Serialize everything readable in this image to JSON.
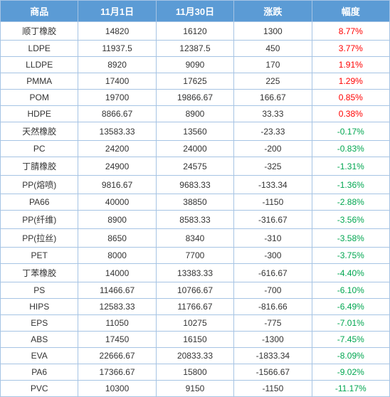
{
  "table": {
    "columns": [
      "商品",
      "11月1日",
      "11月30日",
      "涨跌",
      "幅度"
    ],
    "header_bg": "#5b9bd5",
    "header_color": "#ffffff",
    "border_color": "#a6c4e4",
    "pos_color": "#ff0000",
    "neg_color": "#00a650",
    "rows": [
      {
        "name": "顺丁橡胶",
        "v1": "14820",
        "v2": "16120",
        "diff": "1300",
        "pct": "8.77%",
        "dir": "pos"
      },
      {
        "name": "LDPE",
        "v1": "11937.5",
        "v2": "12387.5",
        "diff": "450",
        "pct": "3.77%",
        "dir": "pos"
      },
      {
        "name": "LLDPE",
        "v1": "8920",
        "v2": "9090",
        "diff": "170",
        "pct": "1.91%",
        "dir": "pos"
      },
      {
        "name": "PMMA",
        "v1": "17400",
        "v2": "17625",
        "diff": "225",
        "pct": "1.29%",
        "dir": "pos"
      },
      {
        "name": "POM",
        "v1": "19700",
        "v2": "19866.67",
        "diff": "166.67",
        "pct": "0.85%",
        "dir": "pos"
      },
      {
        "name": "HDPE",
        "v1": "8866.67",
        "v2": "8900",
        "diff": "33.33",
        "pct": "0.38%",
        "dir": "pos"
      },
      {
        "name": "天然橡胶",
        "v1": "13583.33",
        "v2": "13560",
        "diff": "-23.33",
        "pct": "-0.17%",
        "dir": "neg"
      },
      {
        "name": "PC",
        "v1": "24200",
        "v2": "24000",
        "diff": "-200",
        "pct": "-0.83%",
        "dir": "neg"
      },
      {
        "name": "丁腈橡胶",
        "v1": "24900",
        "v2": "24575",
        "diff": "-325",
        "pct": "-1.31%",
        "dir": "neg"
      },
      {
        "name": "PP(熔喷)",
        "v1": "9816.67",
        "v2": "9683.33",
        "diff": "-133.34",
        "pct": "-1.36%",
        "dir": "neg"
      },
      {
        "name": "PA66",
        "v1": "40000",
        "v2": "38850",
        "diff": "-1150",
        "pct": "-2.88%",
        "dir": "neg"
      },
      {
        "name": "PP(纤维)",
        "v1": "8900",
        "v2": "8583.33",
        "diff": "-316.67",
        "pct": "-3.56%",
        "dir": "neg"
      },
      {
        "name": "PP(拉丝)",
        "v1": "8650",
        "v2": "8340",
        "diff": "-310",
        "pct": "-3.58%",
        "dir": "neg"
      },
      {
        "name": "PET",
        "v1": "8000",
        "v2": "7700",
        "diff": "-300",
        "pct": "-3.75%",
        "dir": "neg"
      },
      {
        "name": "丁苯橡胶",
        "v1": "14000",
        "v2": "13383.33",
        "diff": "-616.67",
        "pct": "-4.40%",
        "dir": "neg"
      },
      {
        "name": "PS",
        "v1": "11466.67",
        "v2": "10766.67",
        "diff": "-700",
        "pct": "-6.10%",
        "dir": "neg"
      },
      {
        "name": "HIPS",
        "v1": "12583.33",
        "v2": "11766.67",
        "diff": "-816.66",
        "pct": "-6.49%",
        "dir": "neg"
      },
      {
        "name": "EPS",
        "v1": "11050",
        "v2": "10275",
        "diff": "-775",
        "pct": "-7.01%",
        "dir": "neg"
      },
      {
        "name": "ABS",
        "v1": "17450",
        "v2": "16150",
        "diff": "-1300",
        "pct": "-7.45%",
        "dir": "neg"
      },
      {
        "name": "EVA",
        "v1": "22666.67",
        "v2": "20833.33",
        "diff": "-1833.34",
        "pct": "-8.09%",
        "dir": "neg"
      },
      {
        "name": "PA6",
        "v1": "17366.67",
        "v2": "15800",
        "diff": "-1566.67",
        "pct": "-9.02%",
        "dir": "neg"
      },
      {
        "name": "PVC",
        "v1": "10300",
        "v2": "9150",
        "diff": "-1150",
        "pct": "-11.17%",
        "dir": "neg"
      }
    ]
  }
}
